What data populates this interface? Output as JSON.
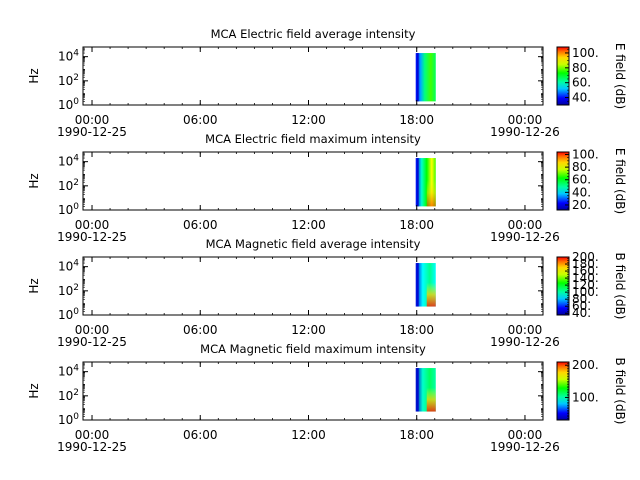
{
  "chart_data": [
    {
      "type": "heatmap",
      "title": "MCA  Electric field average intensity",
      "ylabel": "Hz",
      "colorbar_label": "E field (dB)",
      "colorbar_ticks": [
        "40.",
        "60.",
        "80.",
        "100."
      ],
      "colorbar_range": [
        30,
        108
      ],
      "x_ticks": [
        {
          "time": "00:00",
          "date": "1990-12-25"
        },
        {
          "time": "06:00",
          "date": ""
        },
        {
          "time": "12:00",
          "date": ""
        },
        {
          "time": "18:00",
          "date": ""
        },
        {
          "time": "00:00",
          "date": "1990-12-26"
        }
      ],
      "xlim_hours": [
        -0.5,
        25.0
      ],
      "y_ticks": [
        {
          "base": "10",
          "exp": "0"
        },
        {
          "base": "10",
          "exp": "2"
        },
        {
          "base": "10",
          "exp": "4"
        }
      ],
      "ylim_log10": [
        0,
        4.8
      ],
      "data_time_range_hours": [
        18.0,
        19.0
      ],
      "data_freq_range_log10": [
        0.3,
        4.3
      ]
    },
    {
      "type": "heatmap",
      "title": "MCA  Electric field maximum intensity",
      "ylabel": "Hz",
      "colorbar_label": "E field (dB)",
      "colorbar_ticks": [
        "20.",
        "40.",
        "60.",
        "80.",
        "100."
      ],
      "colorbar_range": [
        12,
        104
      ],
      "x_ticks": [
        {
          "time": "00:00",
          "date": "1990-12-25"
        },
        {
          "time": "06:00",
          "date": ""
        },
        {
          "time": "12:00",
          "date": ""
        },
        {
          "time": "18:00",
          "date": ""
        },
        {
          "time": "00:00",
          "date": "1990-12-26"
        }
      ],
      "xlim_hours": [
        -0.5,
        25.0
      ],
      "y_ticks": [
        {
          "base": "10",
          "exp": "0"
        },
        {
          "base": "10",
          "exp": "2"
        },
        {
          "base": "10",
          "exp": "4"
        }
      ],
      "ylim_log10": [
        0,
        4.8
      ],
      "data_time_range_hours": [
        18.0,
        19.0
      ],
      "data_freq_range_log10": [
        0.3,
        4.3
      ]
    },
    {
      "type": "heatmap",
      "title": "MCA  Magnetic field average intensity",
      "ylabel": "Hz",
      "colorbar_label": "B field (dB)",
      "colorbar_ticks": [
        "40.",
        "60.",
        "80.",
        "100.",
        "120.",
        "140.",
        "160.",
        "180.",
        "200."
      ],
      "colorbar_range": [
        35,
        200
      ],
      "x_ticks": [
        {
          "time": "00:00",
          "date": "1990-12-25"
        },
        {
          "time": "06:00",
          "date": ""
        },
        {
          "time": "12:00",
          "date": ""
        },
        {
          "time": "18:00",
          "date": ""
        },
        {
          "time": "00:00",
          "date": "1990-12-26"
        }
      ],
      "xlim_hours": [
        -0.5,
        25.0
      ],
      "y_ticks": [
        {
          "base": "10",
          "exp": "0"
        },
        {
          "base": "10",
          "exp": "2"
        },
        {
          "base": "10",
          "exp": "4"
        }
      ],
      "ylim_log10": [
        0,
        4.8
      ],
      "data_time_range_hours": [
        18.0,
        19.0
      ],
      "data_freq_range_log10": [
        0.7,
        4.3
      ]
    },
    {
      "type": "heatmap",
      "title": "MCA  Magnetic field maximum intensity",
      "ylabel": "Hz",
      "colorbar_label": "B field (dB)",
      "colorbar_ticks": [
        "100.",
        "200."
      ],
      "colorbar_range": [
        30,
        210
      ],
      "x_ticks": [
        {
          "time": "00:00",
          "date": "1990-12-25"
        },
        {
          "time": "06:00",
          "date": ""
        },
        {
          "time": "12:00",
          "date": ""
        },
        {
          "time": "18:00",
          "date": ""
        },
        {
          "time": "00:00",
          "date": "1990-12-26"
        }
      ],
      "xlim_hours": [
        -0.5,
        25.0
      ],
      "y_ticks": [
        {
          "base": "10",
          "exp": "0"
        },
        {
          "base": "10",
          "exp": "2"
        },
        {
          "base": "10",
          "exp": "4"
        }
      ],
      "ylim_log10": [
        0,
        4.8
      ],
      "data_time_range_hours": [
        18.0,
        19.0
      ],
      "data_freq_range_log10": [
        0.7,
        4.3
      ]
    }
  ]
}
